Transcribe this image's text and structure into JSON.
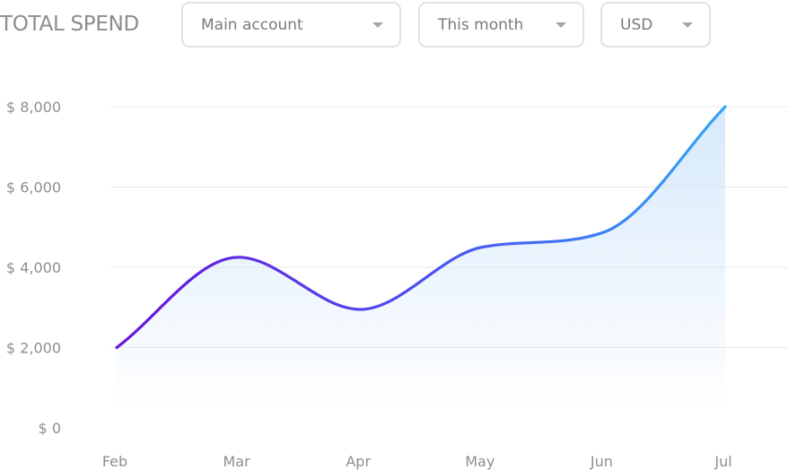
{
  "header": {
    "title": "TOTAL SPEND",
    "account_select": "Main account",
    "period_select": "This month",
    "currency_select": "USD"
  },
  "colors": {
    "line_start": "#6a12e0",
    "line_mid": "#4a56f0",
    "line_end": "#33a4f8",
    "fill": "#cfe5fb",
    "grid": "#e8e8e8",
    "text": "#8e8e8e"
  },
  "chart_data": {
    "type": "area",
    "categories": [
      "Feb",
      "Mar",
      "Apr",
      "May",
      "Jun",
      "Jul"
    ],
    "series": [
      {
        "values": [
          2000,
          4250,
          2950,
          4500,
          4870,
          8000
        ]
      }
    ],
    "y_ticks": [
      "$ 0",
      "$ 2,000",
      "$ 4,000",
      "$ 6,000",
      "$ 8,000"
    ],
    "ylim": [
      0,
      8000
    ],
    "grid": true
  }
}
